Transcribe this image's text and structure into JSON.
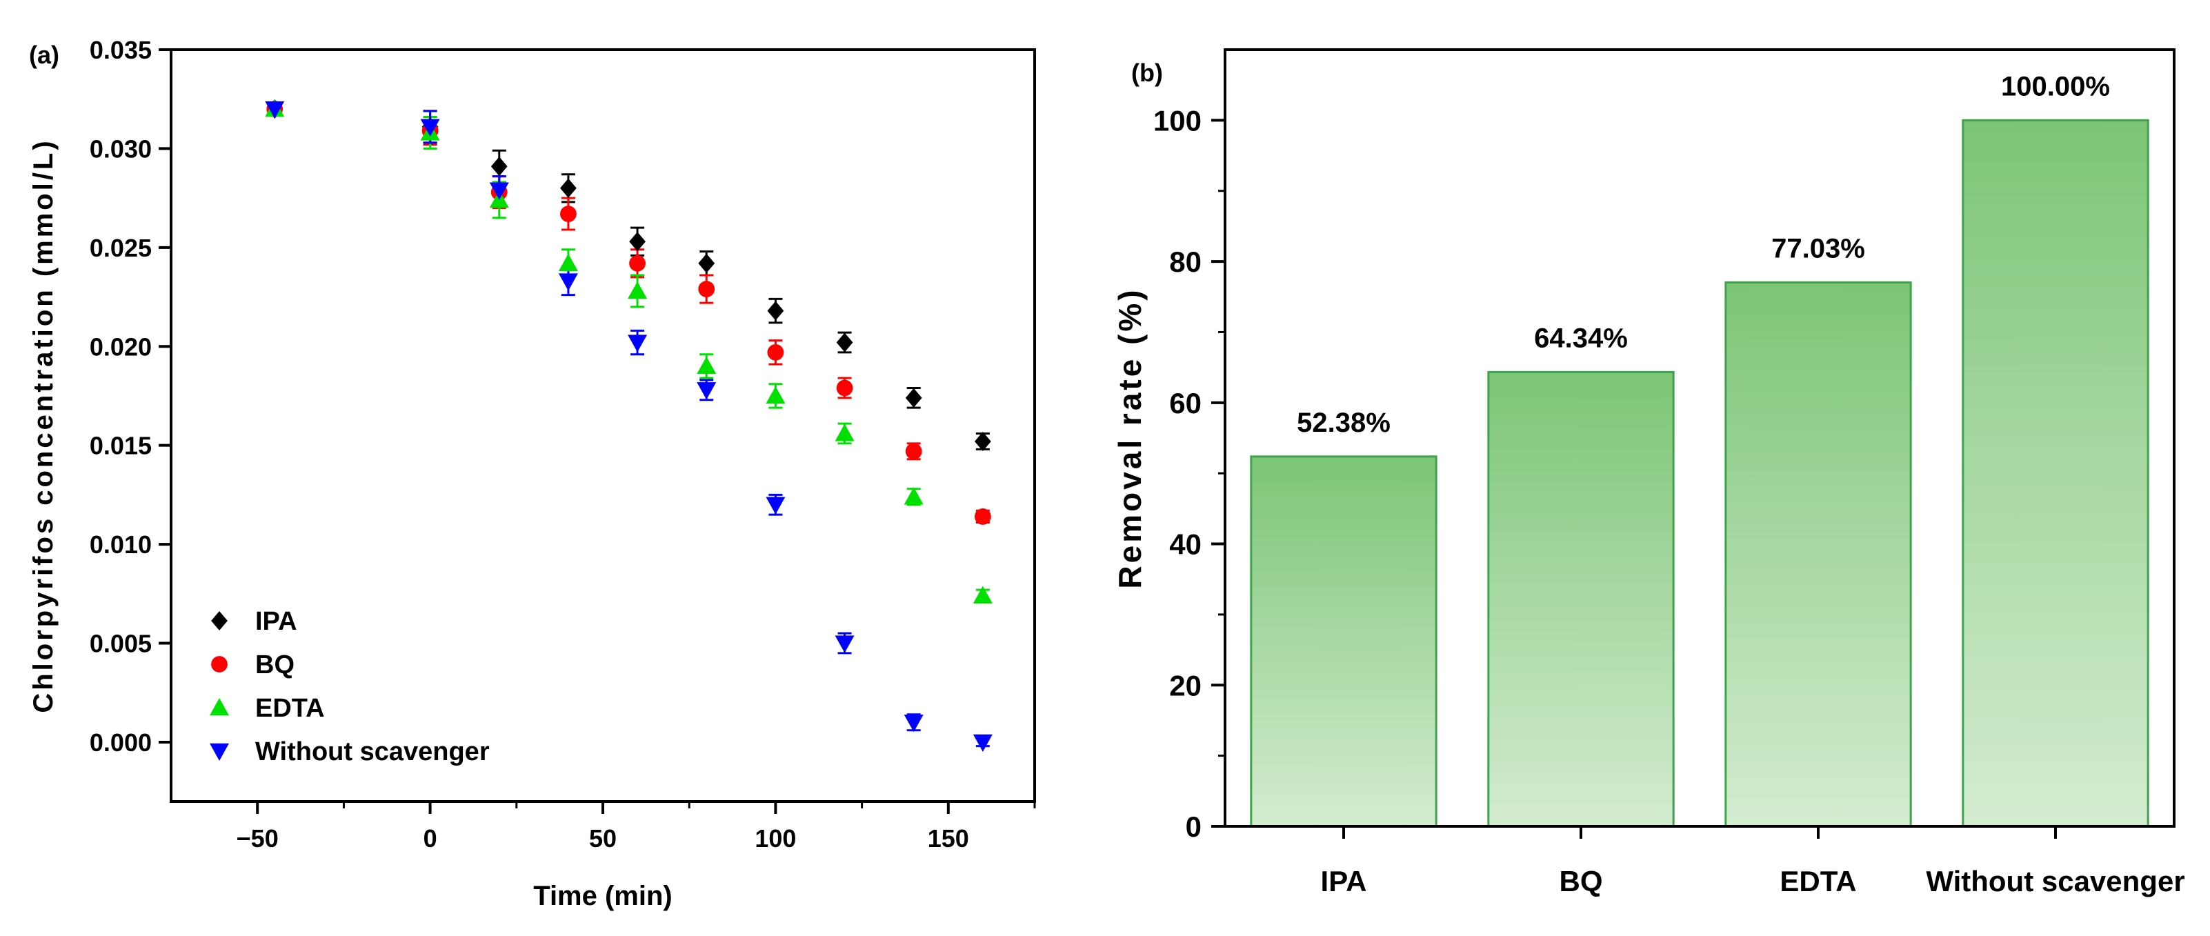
{
  "chart_data": [
    {
      "type": "scatter",
      "panel_label": "(a)",
      "xlabel": "Time (min)",
      "ylabel": "Chlorpyrifos concentration (mmol/L)",
      "xlim": [
        -75,
        175
      ],
      "ylim": [
        -0.003,
        0.035
      ],
      "x_ticks": [
        -50,
        0,
        50,
        100,
        150
      ],
      "x_tick_labels": [
        "−50",
        "0",
        "50",
        "100",
        "150"
      ],
      "y_ticks": [
        0.0,
        0.005,
        0.01,
        0.015,
        0.02,
        0.025,
        0.03,
        0.035
      ],
      "y_tick_labels": [
        "0.000",
        "0.005",
        "0.010",
        "0.015",
        "0.020",
        "0.025",
        "0.030",
        "0.035"
      ],
      "grid": false,
      "legend_position": "bottom-left",
      "series": [
        {
          "name": "IPA",
          "marker": "diamond",
          "color": "#000000",
          "x": [
            -45,
            0,
            20,
            40,
            60,
            80,
            100,
            120,
            140,
            160
          ],
          "y": [
            0.032,
            0.0311,
            0.0291,
            0.028,
            0.0253,
            0.0242,
            0.0218,
            0.0202,
            0.0174,
            0.0152
          ],
          "err": [
            0.0003,
            0.0008,
            0.0008,
            0.0007,
            0.0007,
            0.0006,
            0.0006,
            0.0005,
            0.0005,
            0.0004
          ]
        },
        {
          "name": "BQ",
          "marker": "circle",
          "color": "#ff0000",
          "x": [
            -45,
            0,
            20,
            40,
            60,
            80,
            100,
            120,
            140,
            160
          ],
          "y": [
            0.032,
            0.0309,
            0.0278,
            0.0267,
            0.0242,
            0.0229,
            0.0197,
            0.0179,
            0.0147,
            0.0114
          ],
          "err": [
            0.0003,
            0.0007,
            0.0008,
            0.0008,
            0.0007,
            0.0007,
            0.0006,
            0.0005,
            0.0004,
            0.0003
          ]
        },
        {
          "name": "EDTA",
          "marker": "triangle-up",
          "color": "#00e000",
          "x": [
            -45,
            0,
            20,
            40,
            60,
            80,
            100,
            120,
            140,
            160
          ],
          "y": [
            0.032,
            0.0308,
            0.0274,
            0.0242,
            0.0228,
            0.019,
            0.0175,
            0.0156,
            0.0124,
            0.0074
          ],
          "err": [
            0.0003,
            0.0008,
            0.0009,
            0.0007,
            0.0008,
            0.0006,
            0.0006,
            0.0005,
            0.0004,
            0.0003
          ]
        },
        {
          "name": "Without scavenger",
          "marker": "triangle-down",
          "color": "#0000ff",
          "x": [
            -45,
            0,
            20,
            40,
            60,
            80,
            100,
            120,
            140,
            160
          ],
          "y": [
            0.032,
            0.0311,
            0.0279,
            0.0233,
            0.0202,
            0.0178,
            0.012,
            0.005,
            0.001,
            0.0
          ],
          "err": [
            0.0002,
            0.0008,
            0.0007,
            0.0007,
            0.0006,
            0.0005,
            0.0005,
            0.0005,
            0.0004,
            0.0002
          ]
        }
      ]
    },
    {
      "type": "bar",
      "panel_label": "(b)",
      "xlabel": "",
      "ylabel": "Removal rate (%)",
      "ylim": [
        0,
        110
      ],
      "y_ticks": [
        0,
        20,
        40,
        60,
        80,
        100
      ],
      "y_tick_labels": [
        "0",
        "20",
        "40",
        "60",
        "80",
        "100"
      ],
      "categories": [
        "IPA",
        "BQ",
        "EDTA",
        "Without scavenger"
      ],
      "values": [
        52.38,
        64.34,
        77.03,
        100.0
      ],
      "value_labels": [
        "52.38%",
        "64.34%",
        "77.03%",
        "100.00%"
      ],
      "bar_color_top": "#7cc576",
      "bar_color_bottom": "#d4ecd0",
      "bar_edge_color": "#3fa34d",
      "grid": false
    }
  ]
}
